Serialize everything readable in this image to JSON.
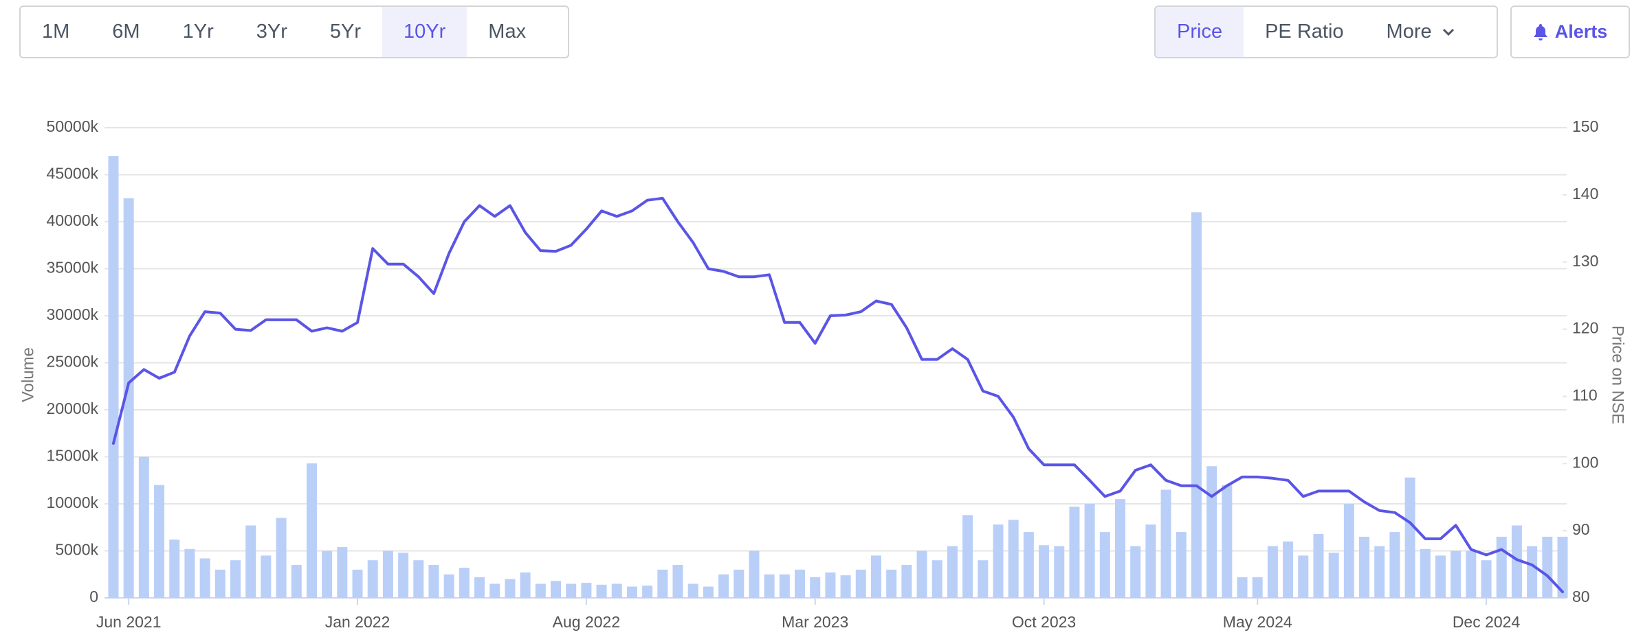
{
  "controls": {
    "ranges": [
      "1M",
      "6M",
      "1Yr",
      "3Yr",
      "5Yr",
      "10Yr",
      "Max"
    ],
    "active_range": 5,
    "views": [
      "Price",
      "PE Ratio",
      "More"
    ],
    "active_view": 0,
    "alerts": "Alerts"
  },
  "chart_data": {
    "type": "combo",
    "categories": [
      null,
      "Jun 2021",
      null,
      null,
      null,
      null,
      null,
      null,
      null,
      null,
      null,
      null,
      null,
      null,
      null,
      null,
      "Jan 2022",
      null,
      null,
      null,
      null,
      null,
      null,
      null,
      null,
      null,
      null,
      null,
      null,
      null,
      null,
      "Aug 2022",
      null,
      null,
      null,
      null,
      null,
      null,
      null,
      null,
      null,
      null,
      null,
      null,
      null,
      null,
      "Mar 2023",
      null,
      null,
      null,
      null,
      null,
      null,
      null,
      null,
      null,
      null,
      null,
      null,
      null,
      null,
      "Oct 2023",
      null,
      null,
      null,
      null,
      null,
      null,
      null,
      null,
      null,
      null,
      null,
      null,
      null,
      "May 2024",
      null,
      null,
      null,
      null,
      null,
      null,
      null,
      null,
      null,
      null,
      null,
      null,
      null,
      null,
      "Dec 2024",
      null,
      null,
      null,
      null,
      null
    ],
    "series": [
      {
        "type": "bar",
        "color": "#b9cff8",
        "values": [
          47000,
          42500,
          15000,
          12000,
          6200,
          5200,
          4200,
          3000,
          4000,
          7700,
          4500,
          8500,
          3500,
          14300,
          5000,
          5400,
          3000,
          4000,
          5000,
          4800,
          4000,
          3500,
          2500,
          3200,
          2200,
          1500,
          2000,
          2700,
          1500,
          1800,
          1500,
          1600,
          1400,
          1500,
          1200,
          1300,
          3000,
          3500,
          1500,
          1200,
          2500,
          3000,
          5000,
          2500,
          2500,
          3000,
          2200,
          2700,
          2400,
          3000,
          4500,
          3000,
          3500,
          5000,
          4000,
          5500,
          8800,
          4000,
          7800,
          8300,
          7000,
          5600,
          5500,
          9700,
          10000,
          7000,
          10500,
          5500,
          7800,
          11500,
          7000,
          41000,
          14000,
          12000,
          2200,
          2200,
          5500,
          6000,
          4500,
          6800,
          4800,
          10000,
          6500,
          5500,
          7000,
          12800,
          5200,
          4500,
          5000,
          5000,
          4000,
          6500,
          7700,
          5500,
          6500,
          6500
        ]
      },
      {
        "type": "line",
        "axis": "y2",
        "color": "#5a55e6",
        "values": [
          103,
          112,
          114,
          112.7,
          113.6,
          119,
          122.6,
          122.4,
          120,
          119.8,
          121.4,
          121.4,
          121.4,
          119.7,
          120.2,
          119.7,
          121,
          132,
          129.7,
          129.7,
          127.8,
          125.3,
          131.3,
          136,
          138.4,
          136.8,
          138.4,
          134.4,
          131.7,
          131.6,
          132.5,
          134.9,
          137.6,
          136.8,
          137.6,
          139.2,
          139.5,
          136,
          132.9,
          129,
          128.6,
          127.8,
          127.8,
          128.1,
          121,
          121,
          117.9,
          122,
          122.1,
          122.6,
          124.2,
          123.7,
          120.2,
          115.5,
          115.5,
          117.1,
          115.5,
          110.8,
          110,
          106.9,
          102.2,
          99.8,
          99.8,
          99.8,
          97.5,
          95.1,
          95.9,
          99,
          99.8,
          97.5,
          96.7,
          96.7,
          95.1,
          96.7,
          98,
          98,
          97.8,
          97.5,
          95.1,
          95.9,
          95.9,
          95.9,
          94.3,
          93,
          92.7,
          91.2,
          88.8,
          88.8,
          90.8,
          87.2,
          86.4,
          87.2,
          85.7,
          84.9,
          83.3,
          80.9
        ]
      }
    ],
    "ylabel": "Volume",
    "y2label": "Price on NSE",
    "ylim": [
      0,
      50000
    ],
    "yticks": [
      0,
      {
        "value": 5000,
        "label": "5000k"
      },
      {
        "value": 10000,
        "label": "10000k"
      },
      {
        "value": 15000,
        "label": "15000k"
      },
      {
        "value": 20000,
        "label": "20000k"
      },
      {
        "value": 25000,
        "label": "25000k"
      },
      {
        "value": 30000,
        "label": "30000k"
      },
      {
        "value": 35000,
        "label": "35000k"
      },
      {
        "value": 40000,
        "label": "40000k"
      },
      {
        "value": 45000,
        "label": "45000k"
      },
      {
        "value": 50000,
        "label": "50000k"
      }
    ],
    "y2lim": [
      80,
      150
    ],
    "y2ticks": [
      80,
      90,
      100,
      110,
      120,
      130,
      140,
      150
    ],
    "grid": true
  }
}
